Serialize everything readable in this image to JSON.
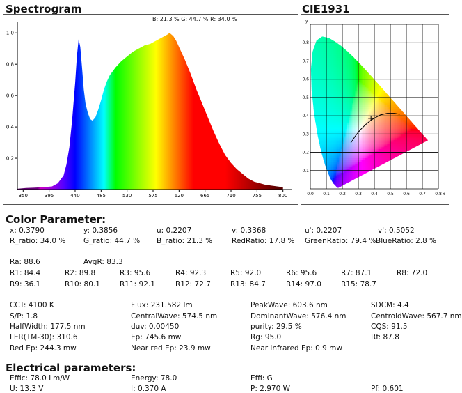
{
  "spectrogram": {
    "title": "Spectrogram",
    "legend": "B: 21.3 %  G: 44.7 %  R: 34.0 %",
    "chart_data": {
      "type": "area",
      "x_ticks": [
        "350",
        "395",
        "440",
        "485",
        "530",
        "575",
        "620",
        "665",
        "710",
        "755",
        "800"
      ],
      "y_ticks": [
        "1.0",
        "0.8",
        "0.6",
        "0.4",
        "0.2"
      ],
      "xlim": [
        340,
        810
      ],
      "ylim": [
        0,
        1.05
      ],
      "x": [
        340,
        355,
        370,
        385,
        400,
        410,
        420,
        425,
        430,
        435,
        440,
        443,
        446,
        449,
        452,
        455,
        458,
        462,
        466,
        470,
        475,
        480,
        485,
        490,
        495,
        500,
        510,
        520,
        530,
        540,
        550,
        560,
        570,
        580,
        590,
        600,
        603.6,
        610,
        615,
        620,
        630,
        640,
        650,
        660,
        670,
        680,
        690,
        700,
        710,
        720,
        730,
        740,
        750,
        760,
        770,
        780,
        790,
        800
      ],
      "y": [
        0.005,
        0.01,
        0.012,
        0.015,
        0.02,
        0.04,
        0.09,
        0.16,
        0.27,
        0.45,
        0.68,
        0.85,
        0.96,
        0.91,
        0.78,
        0.64,
        0.55,
        0.49,
        0.45,
        0.44,
        0.46,
        0.51,
        0.57,
        0.64,
        0.69,
        0.73,
        0.78,
        0.82,
        0.85,
        0.88,
        0.9,
        0.92,
        0.93,
        0.95,
        0.97,
        0.99,
        1.0,
        0.98,
        0.95,
        0.91,
        0.83,
        0.74,
        0.64,
        0.55,
        0.46,
        0.37,
        0.29,
        0.22,
        0.17,
        0.13,
        0.1,
        0.07,
        0.05,
        0.04,
        0.03,
        0.025,
        0.02,
        0.015
      ]
    }
  },
  "cie": {
    "title": "CIE1931",
    "y_axis_label": "y",
    "x_axis_label": "x",
    "chart_data": {
      "type": "scatter",
      "xlim": [
        0,
        0.8
      ],
      "ylim": [
        0,
        0.9
      ],
      "x_ticks": [
        "0.0",
        "0.1",
        "0.2",
        "0.3",
        "0.4",
        "0.5",
        "0.6",
        "0.7",
        "0.8"
      ],
      "y_ticks": [
        "0.1",
        "0.2",
        "0.3",
        "0.4",
        "0.5",
        "0.6",
        "0.7",
        "0.8"
      ],
      "locus": [
        [
          0.1741,
          0.005
        ],
        [
          0.1666,
          0.0089
        ],
        [
          0.144,
          0.0297
        ],
        [
          0.1241,
          0.0578
        ],
        [
          0.0913,
          0.1327
        ],
        [
          0.0687,
          0.2007
        ],
        [
          0.0454,
          0.295
        ],
        [
          0.0235,
          0.4127
        ],
        [
          0.0082,
          0.5384
        ],
        [
          0.0039,
          0.6548
        ],
        [
          0.0139,
          0.7502
        ],
        [
          0.0389,
          0.812
        ],
        [
          0.0743,
          0.8338
        ],
        [
          0.1142,
          0.8262
        ],
        [
          0.1547,
          0.8059
        ],
        [
          0.1929,
          0.7816
        ],
        [
          0.2296,
          0.7543
        ],
        [
          0.2658,
          0.7243
        ],
        [
          0.3016,
          0.6923
        ],
        [
          0.3373,
          0.6589
        ],
        [
          0.3731,
          0.6245
        ],
        [
          0.4087,
          0.5896
        ],
        [
          0.4441,
          0.5547
        ],
        [
          0.4788,
          0.5202
        ],
        [
          0.5125,
          0.4866
        ],
        [
          0.5448,
          0.4544
        ],
        [
          0.5752,
          0.4242
        ],
        [
          0.6029,
          0.3965
        ],
        [
          0.627,
          0.3725
        ],
        [
          0.6482,
          0.3514
        ],
        [
          0.6658,
          0.334
        ],
        [
          0.6801,
          0.3197
        ],
        [
          0.6915,
          0.3083
        ],
        [
          0.7006,
          0.2993
        ],
        [
          0.7079,
          0.292
        ],
        [
          0.714,
          0.2859
        ],
        [
          0.719,
          0.2809
        ],
        [
          0.723,
          0.277
        ],
        [
          0.7347,
          0.2653
        ]
      ],
      "planckian": [
        [
          0.2525,
          0.2522
        ],
        [
          0.2653,
          0.2673
        ],
        [
          0.2806,
          0.2883
        ],
        [
          0.2952,
          0.3048
        ],
        [
          0.3118,
          0.3224
        ],
        [
          0.3221,
          0.3318
        ],
        [
          0.3457,
          0.3516
        ],
        [
          0.3805,
          0.3768
        ],
        [
          0.4369,
          0.4041
        ],
        [
          0.4808,
          0.4135
        ],
        [
          0.5267,
          0.4133
        ],
        [
          0.5586,
          0.4082
        ]
      ],
      "point": {
        "x": 0.379,
        "y": 0.3856
      }
    }
  },
  "color_param": {
    "heading": "Color Parameter:",
    "row1": [
      "x: 0.3790",
      "y: 0.3856",
      "u: 0.2207",
      "v: 0.3368",
      "u': 0.2207",
      "v': 0.5052"
    ],
    "row2": [
      "R_ratio: 34.0 %",
      "G_ratio: 44.7 %",
      "B_ratio: 21.3 %",
      "RedRatio: 17.8 %",
      "GreenRatio: 79.4 %",
      "BlueRatio: 2.8 %"
    ],
    "ra": "Ra: 88.6",
    "avgr": "AvgR: 83.3",
    "r_row1": [
      "R1: 84.4",
      "R2: 89.8",
      "R3: 95.6",
      "R4: 92.3",
      "R5: 92.0",
      "R6: 95.6",
      "R7: 87.1",
      "R8: 72.0"
    ],
    "r_row2": [
      "R9: 36.1",
      "R10: 80.1",
      "R11: 92.1",
      "R12: 72.7",
      "R13: 84.7",
      "R14: 97.0",
      "R15: 78.7"
    ],
    "g_col1": [
      "CCT: 4100 K",
      "S/P: 1.8",
      "HalfWidth: 177.5 nm",
      "LER(TM-30): 310.6",
      "Red Ep: 244.3 mw"
    ],
    "g_col2": [
      "Flux: 231.582 lm",
      "CentralWave: 574.5 nm",
      "duv: 0.00450",
      "Ep: 745.6 mw",
      "Near red Ep: 23.9 mw"
    ],
    "g_col3": [
      "PeakWave: 603.6 nm",
      "DominantWave: 576.4 nm",
      "purity: 29.5 %",
      "Rg: 95.0",
      "Near infrared Ep: 0.9 mw"
    ],
    "g_col4": [
      "SDCM: 4.4",
      "CentroidWave: 567.7 nm",
      "CQS: 91.5",
      "Rf: 87.8"
    ]
  },
  "electrical": {
    "heading": "Electrical parameters:",
    "row1": [
      "Effic: 78.0 Lm/W",
      "Energy: 78.0",
      "Effi: G"
    ],
    "row2": [
      "U: 13.3 V",
      "I: 0.370 A",
      "P: 2.970 W",
      "Pf: 0.601"
    ]
  }
}
